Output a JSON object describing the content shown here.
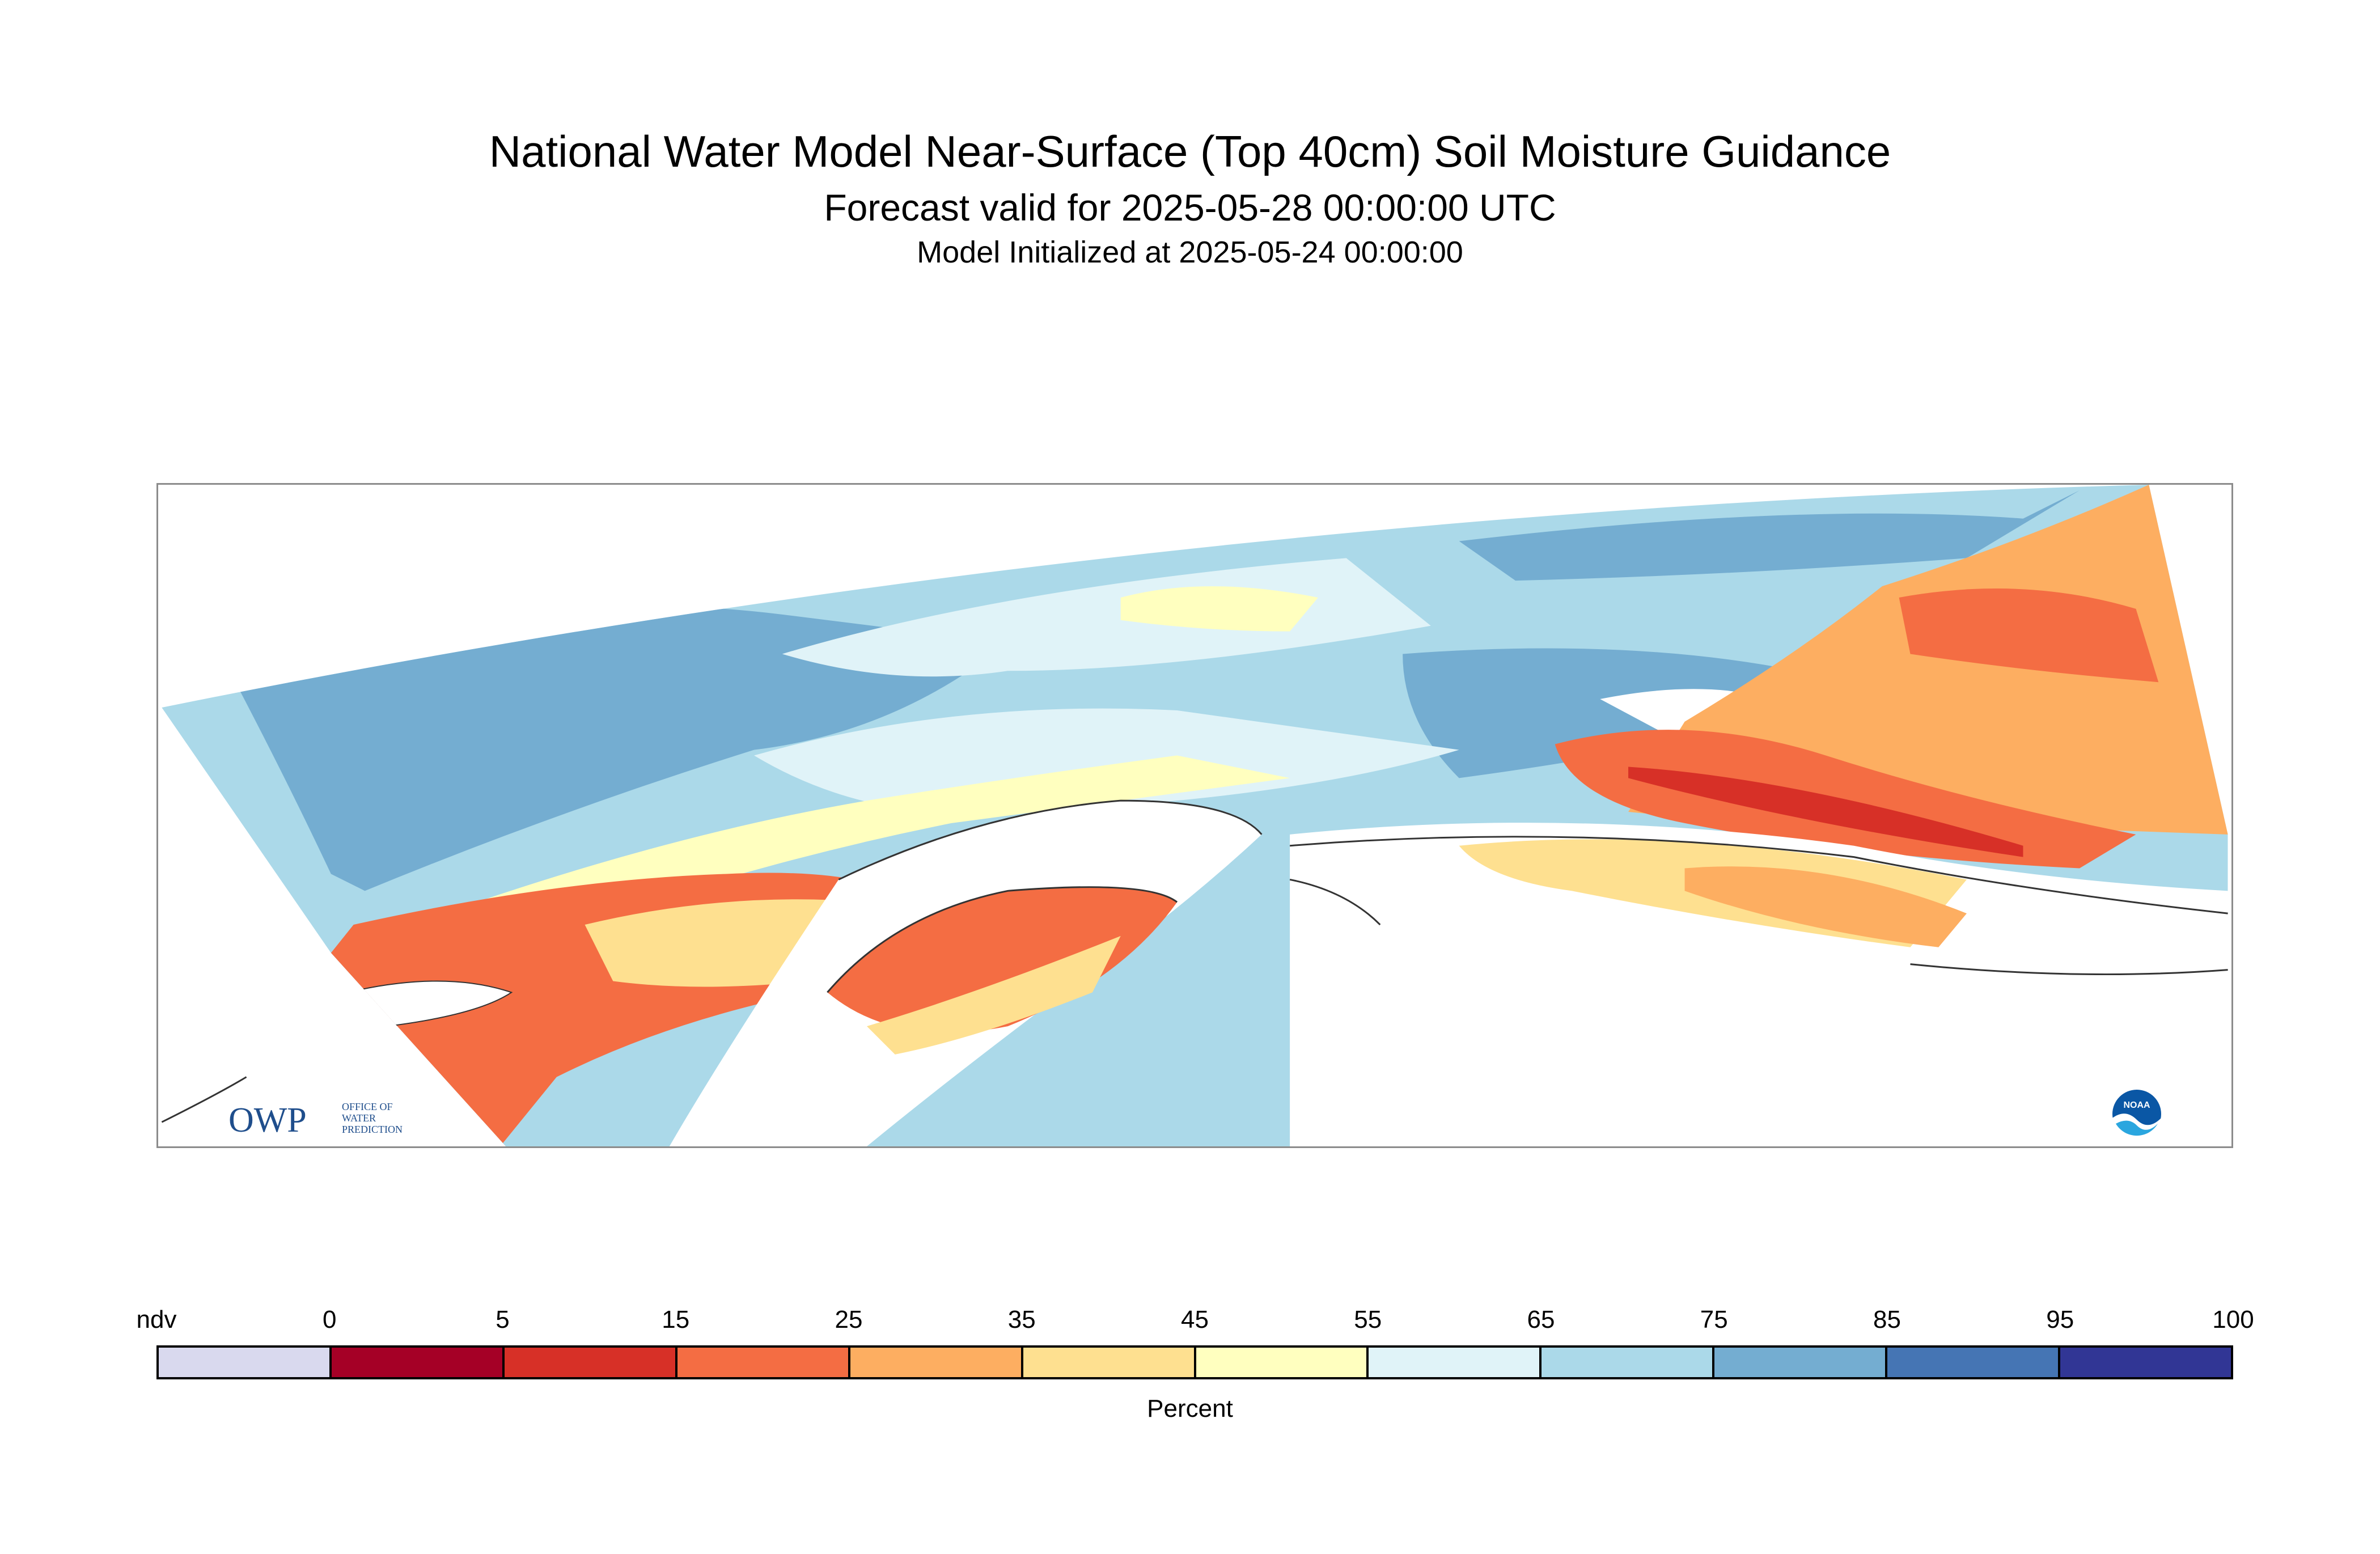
{
  "titles": {
    "main": "National Water Model Near-Surface (Top 40cm) Soil Moisture Guidance",
    "valid": "Forecast valid for 2025-05-28 00:00:00 UTC",
    "init": "Model Initialized at 2025-05-24 00:00:00"
  },
  "logos": {
    "owp_letters": "OWP",
    "owp_office": [
      "OFFICE OF",
      "WATER",
      "PREDICTION"
    ],
    "noaa_letters": "NOAA"
  },
  "legend": {
    "ticks": [
      "ndv",
      "0",
      "5",
      "15",
      "25",
      "35",
      "45",
      "55",
      "65",
      "75",
      "85",
      "95",
      "100"
    ],
    "colors": [
      "#d9d9ee",
      "#a50026",
      "#d73027",
      "#f46d43",
      "#fdae61",
      "#fee090",
      "#ffffbf",
      "#e0f3f8",
      "#abd9e9",
      "#74add1",
      "#4575b4",
      "#313695"
    ],
    "label": "Percent"
  },
  "map_colors": {
    "water_bg": "#ffffff",
    "coast": "#333333"
  }
}
